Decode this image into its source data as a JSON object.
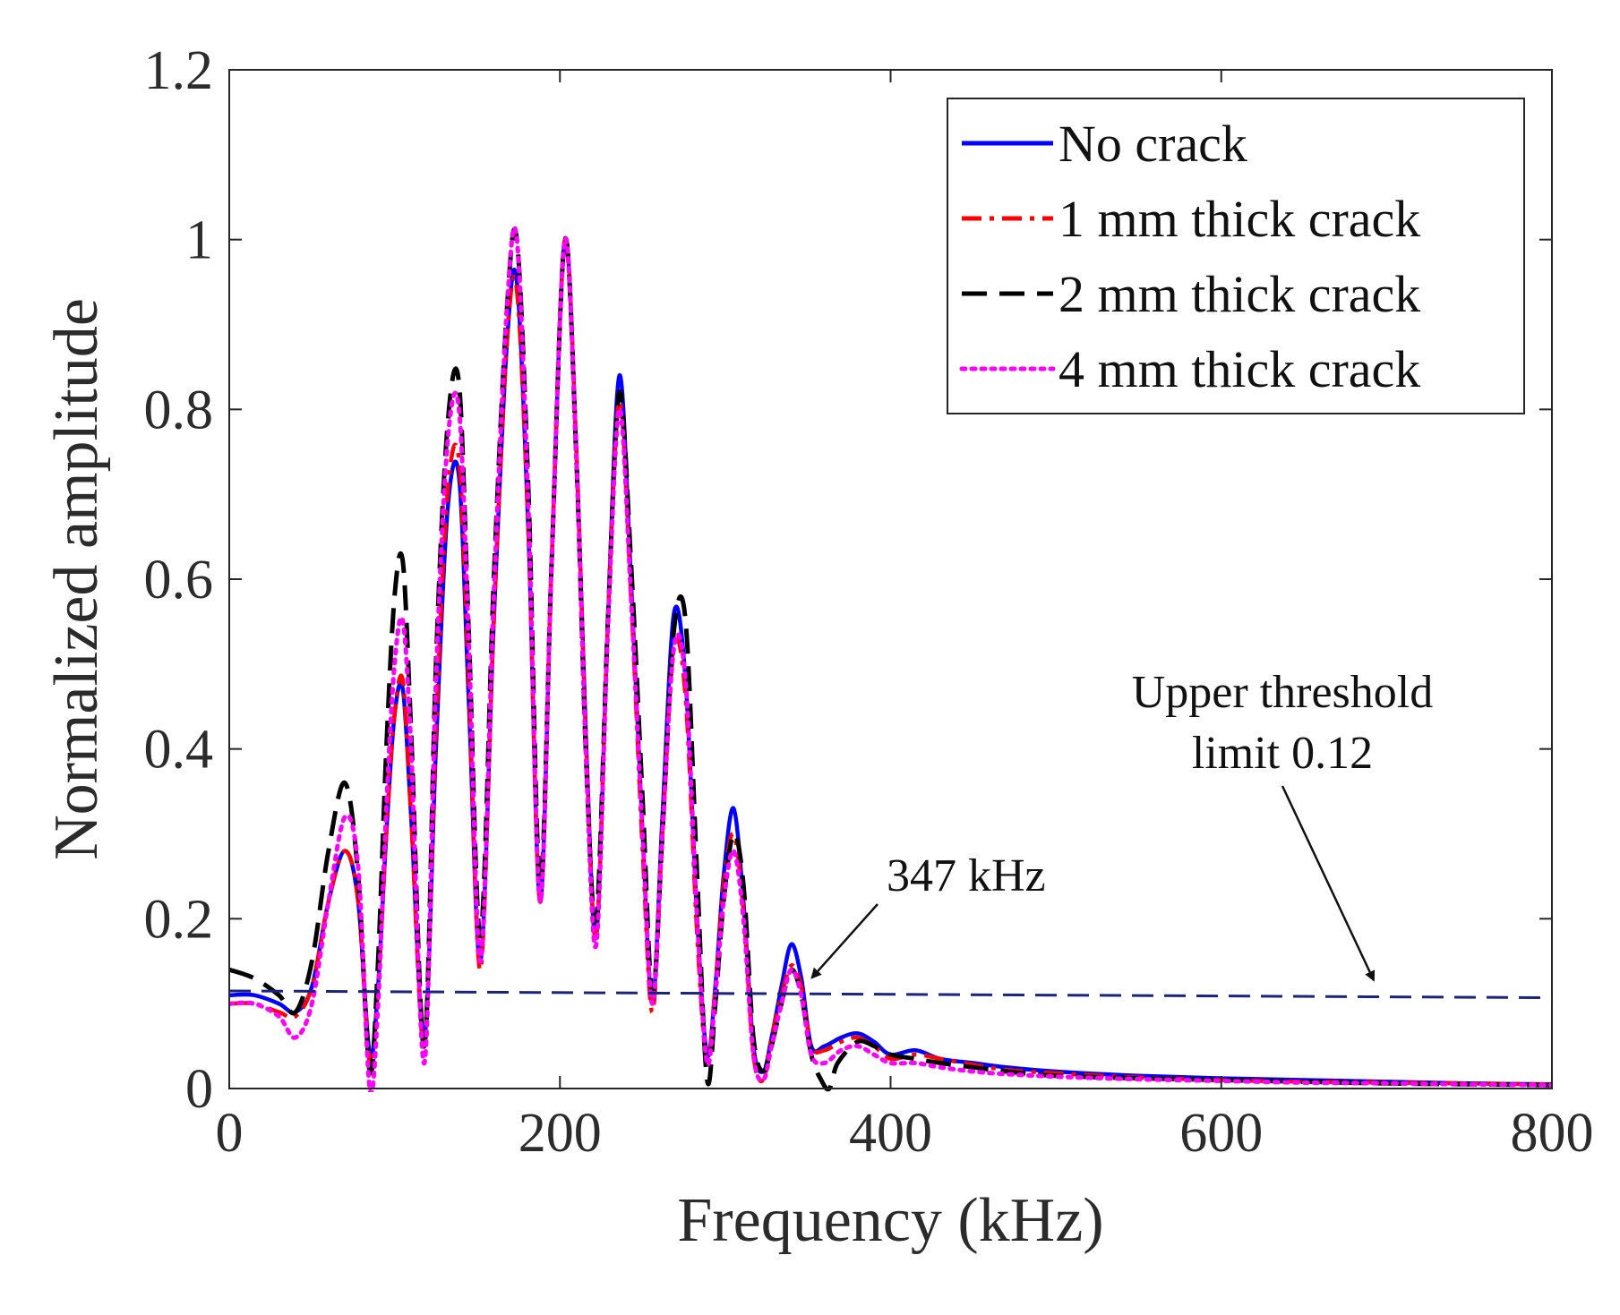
{
  "chart_data": {
    "type": "line",
    "title": "",
    "xlabel": "Frequency (kHz)",
    "ylabel": "Normalized amplitude",
    "xlim": [
      0,
      800
    ],
    "ylim": [
      0,
      1.2
    ],
    "xticks": [
      0,
      200,
      400,
      600,
      800
    ],
    "yticks": [
      0,
      0.2,
      0.4,
      0.6,
      0.8,
      1,
      1.2
    ],
    "xtick_labels": [
      "0",
      "200",
      "400",
      "600",
      "800"
    ],
    "ytick_labels": [
      "0",
      "0.2",
      "0.4",
      "0.6",
      "0.8",
      "1",
      "1.2"
    ],
    "grid": false,
    "legend_position": "top-right",
    "series": [
      {
        "name": "No crack",
        "color": "#0000ff",
        "style": "solid",
        "x": [
          0,
          15,
          30,
          40,
          50,
          60,
          70,
          78,
          85,
          90,
          95,
          100,
          105,
          110,
          118,
          125,
          132,
          139,
          145,
          152,
          160,
          168,
          174,
          181,
          188,
          195,
          203,
          210,
          216,
          222,
          229,
          236,
          243,
          250,
          256,
          262,
          269,
          276,
          283,
          289,
          294,
          299,
          305,
          311,
          317,
          323,
          328,
          334,
          340,
          346,
          352,
          360,
          370,
          380,
          390,
          400,
          415,
          430,
          450,
          470,
          500,
          550,
          600,
          650,
          700,
          750,
          800
        ],
        "y": [
          0.11,
          0.11,
          0.1,
          0.09,
          0.12,
          0.22,
          0.28,
          0.22,
          0.04,
          0.12,
          0.3,
          0.44,
          0.47,
          0.32,
          0.06,
          0.4,
          0.68,
          0.72,
          0.45,
          0.15,
          0.55,
          0.88,
          0.95,
          0.65,
          0.22,
          0.62,
          1.0,
          0.75,
          0.4,
          0.18,
          0.55,
          0.84,
          0.6,
          0.3,
          0.1,
          0.32,
          0.56,
          0.48,
          0.2,
          0.04,
          0.12,
          0.25,
          0.33,
          0.22,
          0.05,
          0.02,
          0.06,
          0.12,
          0.17,
          0.13,
          0.05,
          0.05,
          0.06,
          0.065,
          0.055,
          0.04,
          0.045,
          0.035,
          0.03,
          0.025,
          0.02,
          0.015,
          0.012,
          0.01,
          0.008,
          0.006,
          0.005
        ]
      },
      {
        "name": "1 mm thick crack",
        "color": "#ff0000",
        "style": "dashdot",
        "x": [
          0,
          15,
          30,
          40,
          50,
          60,
          70,
          78,
          85,
          90,
          95,
          100,
          105,
          110,
          118,
          125,
          132,
          139,
          145,
          152,
          160,
          168,
          174,
          181,
          188,
          195,
          203,
          210,
          216,
          222,
          229,
          236,
          243,
          250,
          256,
          262,
          269,
          276,
          283,
          289,
          294,
          299,
          305,
          311,
          317,
          323,
          328,
          334,
          340,
          346,
          352,
          360,
          370,
          380,
          390,
          400,
          415,
          430,
          450,
          470,
          500,
          550,
          600,
          650,
          700,
          750,
          800
        ],
        "y": [
          0.1,
          0.1,
          0.09,
          0.085,
          0.12,
          0.22,
          0.28,
          0.22,
          0.03,
          0.12,
          0.3,
          0.44,
          0.48,
          0.32,
          0.05,
          0.42,
          0.7,
          0.74,
          0.47,
          0.14,
          0.55,
          0.88,
          0.94,
          0.65,
          0.22,
          0.62,
          1.0,
          0.75,
          0.4,
          0.18,
          0.55,
          0.81,
          0.58,
          0.28,
          0.09,
          0.3,
          0.52,
          0.46,
          0.18,
          0.03,
          0.12,
          0.24,
          0.3,
          0.21,
          0.04,
          0.01,
          0.06,
          0.11,
          0.145,
          0.12,
          0.05,
          0.045,
          0.055,
          0.06,
          0.05,
          0.035,
          0.04,
          0.035,
          0.028,
          0.022,
          0.018,
          0.013,
          0.01,
          0.008,
          0.007,
          0.006,
          0.005
        ]
      },
      {
        "name": "2 mm thick crack",
        "color": "#000000",
        "style": "dashed",
        "x": [
          0,
          15,
          30,
          40,
          50,
          60,
          70,
          78,
          85,
          90,
          95,
          100,
          105,
          110,
          118,
          125,
          132,
          139,
          145,
          152,
          160,
          168,
          174,
          181,
          188,
          195,
          203,
          210,
          216,
          222,
          229,
          236,
          243,
          250,
          256,
          262,
          269,
          276,
          283,
          289,
          294,
          299,
          305,
          311,
          317,
          323,
          328,
          334,
          340,
          346,
          352,
          358,
          363,
          368,
          380,
          390,
          400,
          415,
          430,
          450,
          470,
          500,
          550,
          600,
          650,
          700,
          750,
          800
        ],
        "y": [
          0.14,
          0.13,
          0.11,
          0.09,
          0.15,
          0.28,
          0.36,
          0.25,
          0.02,
          0.15,
          0.4,
          0.58,
          0.62,
          0.42,
          0.05,
          0.5,
          0.78,
          0.83,
          0.53,
          0.18,
          0.6,
          0.92,
          1.0,
          0.7,
          0.24,
          0.62,
          1.0,
          0.74,
          0.38,
          0.2,
          0.55,
          0.82,
          0.62,
          0.34,
          0.11,
          0.3,
          0.54,
          0.55,
          0.25,
          0.01,
          0.1,
          0.22,
          0.3,
          0.24,
          0.06,
          0.02,
          0.05,
          0.1,
          0.14,
          0.11,
          0.04,
          0.01,
          0.0,
          0.03,
          0.055,
          0.05,
          0.04,
          0.035,
          0.03,
          0.025,
          0.02,
          0.015,
          0.012,
          0.01,
          0.008,
          0.006,
          0.005,
          0.004
        ]
      },
      {
        "name": "4 mm thick crack",
        "color": "#ff00ff",
        "style": "dotted",
        "x": [
          0,
          15,
          30,
          40,
          50,
          60,
          70,
          78,
          85,
          90,
          95,
          100,
          105,
          110,
          118,
          125,
          132,
          139,
          145,
          152,
          160,
          168,
          174,
          181,
          188,
          195,
          203,
          210,
          216,
          222,
          229,
          236,
          243,
          250,
          256,
          262,
          269,
          276,
          283,
          289,
          294,
          299,
          305,
          311,
          317,
          323,
          328,
          334,
          340,
          346,
          352,
          360,
          370,
          380,
          390,
          400,
          415,
          430,
          450,
          470,
          500,
          550,
          600,
          650,
          700,
          750,
          800
        ],
        "y": [
          0.1,
          0.1,
          0.085,
          0.06,
          0.1,
          0.22,
          0.32,
          0.26,
          0.0,
          0.1,
          0.33,
          0.5,
          0.55,
          0.4,
          0.03,
          0.48,
          0.76,
          0.8,
          0.52,
          0.15,
          0.58,
          0.92,
          1.0,
          0.68,
          0.22,
          0.62,
          1.0,
          0.74,
          0.38,
          0.17,
          0.54,
          0.8,
          0.58,
          0.3,
          0.1,
          0.3,
          0.52,
          0.48,
          0.2,
          0.03,
          0.11,
          0.22,
          0.28,
          0.2,
          0.04,
          0.01,
          0.05,
          0.1,
          0.14,
          0.11,
          0.04,
          0.03,
          0.045,
          0.05,
          0.04,
          0.03,
          0.03,
          0.025,
          0.02,
          0.017,
          0.014,
          0.011,
          0.009,
          0.007,
          0.006,
          0.005,
          0.004
        ]
      },
      {
        "name": "Upper threshold",
        "color": "#1a237e",
        "style": "dashed",
        "show_in_legend": false,
        "x": [
          0,
          800
        ],
        "y": [
          0.115,
          0.107
        ]
      }
    ],
    "annotations": [
      {
        "text": "347 kHz",
        "point": [
          347,
          0.12
        ]
      },
      {
        "text_lines": [
          "Upper threshold",
          "limit 0.12"
        ],
        "point": [
          690,
          0.115
        ]
      }
    ]
  }
}
